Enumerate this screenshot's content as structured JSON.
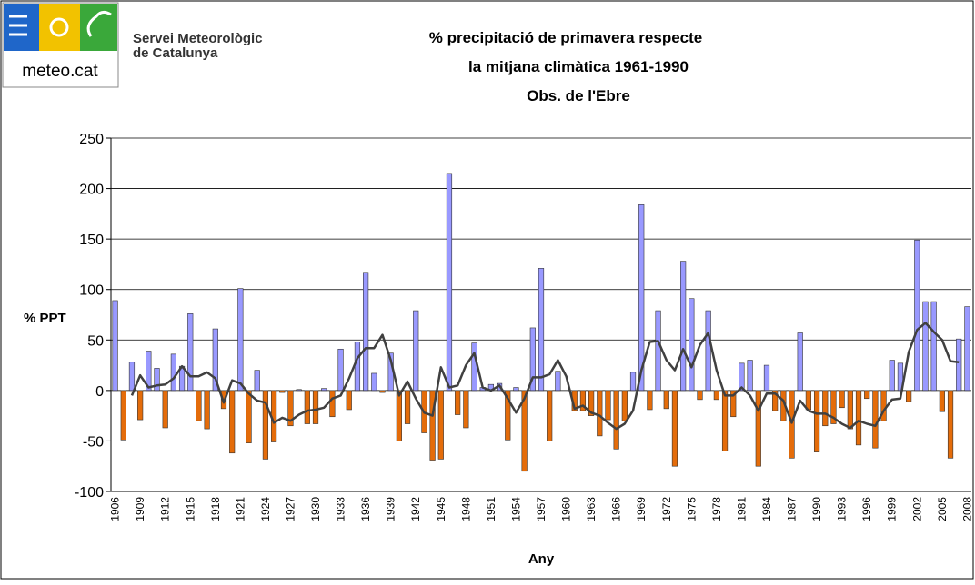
{
  "header": {
    "logo_text": "meteo.cat",
    "org_line1": "Servei Meteorològic",
    "org_line2": "de Catalunya"
  },
  "chart_data": {
    "type": "bar",
    "title": [
      "% precipitació de primavera respecte",
      "la mitjana climàtica 1961-1990",
      "Obs. de l'Ebre"
    ],
    "y_label": "% PPT",
    "x_label": "Any",
    "ylim": [
      -100,
      250
    ],
    "yticks": [
      -100,
      -50,
      0,
      50,
      100,
      150,
      200,
      250
    ],
    "grid": true,
    "categories": [
      "1906",
      null,
      null,
      "1909",
      null,
      null,
      "1912",
      null,
      null,
      "1915",
      null,
      null,
      "1918",
      null,
      null,
      "1921",
      null,
      null,
      "1924",
      null,
      null,
      "1927",
      null,
      null,
      "1930",
      null,
      null,
      "1933",
      null,
      null,
      "1936",
      null,
      null,
      "1939",
      null,
      null,
      "1942",
      null,
      null,
      "1945",
      null,
      null,
      "1948",
      null,
      null,
      "1951",
      null,
      null,
      "1954",
      null,
      null,
      "1957",
      null,
      null,
      "1960",
      null,
      null,
      "1963",
      null,
      null,
      "1966",
      null,
      null,
      "1969",
      null,
      null,
      "1972",
      null,
      null,
      "1975",
      null,
      null,
      "1978",
      null,
      null,
      "1981",
      null,
      null,
      "1984",
      null,
      null,
      "1987",
      null,
      null,
      "1990",
      null,
      null,
      "1993",
      null,
      null,
      "1996",
      null,
      null,
      "1999",
      null,
      null,
      "2002",
      null,
      null,
      "2005",
      null,
      null,
      "2008"
    ],
    "positive_color": "#9999ff",
    "negative_color": "#e46c0a",
    "series": [
      {
        "type": "bar",
        "values": [
          89,
          -49,
          28,
          -29,
          39,
          22,
          -37,
          36,
          24,
          76,
          -30,
          -38,
          61,
          -18,
          -62,
          101,
          -52,
          20,
          -68,
          -51,
          -2,
          -35,
          1,
          -33,
          -33,
          2,
          -26,
          41,
          -19,
          48,
          117,
          17,
          -2,
          37,
          -50,
          -33,
          79,
          -42,
          -69,
          -68,
          215,
          -24,
          -37,
          47,
          3,
          6,
          7,
          -49,
          3,
          -80,
          62,
          121,
          -50,
          19,
          0,
          -20,
          -20,
          -25,
          -45,
          -29,
          -58,
          -30,
          18,
          184,
          -19,
          79,
          -18,
          -75,
          128,
          91,
          -9,
          79,
          -9,
          -60,
          -26,
          27,
          30,
          -75,
          25,
          -20,
          -30,
          -67,
          57,
          -19,
          -61,
          -35,
          -33,
          -17,
          -38,
          -54,
          -8,
          -57,
          -30,
          30,
          27,
          -11,
          149,
          88,
          88,
          -21,
          -67,
          51,
          83
        ]
      },
      {
        "type": "line",
        "color": "#404040",
        "values": [
          null,
          null,
          -5,
          15,
          3,
          5,
          6,
          12,
          24,
          14,
          14,
          18,
          12,
          -12,
          10,
          7,
          -3,
          -10,
          -12,
          -32,
          -27,
          -30,
          -24,
          -20,
          -19,
          -17,
          -8,
          -5,
          12,
          32,
          42,
          42,
          55,
          30,
          -5,
          9,
          -8,
          -22,
          -25,
          23,
          3,
          5,
          25,
          37,
          3,
          0,
          5,
          -8,
          -22,
          -8,
          13,
          13,
          16,
          30,
          14,
          -18,
          -15,
          -22,
          -25,
          -32,
          -38,
          -33,
          -20,
          20,
          48,
          49,
          30,
          20,
          41,
          23,
          45,
          57,
          20,
          -5,
          -5,
          3,
          -5,
          -20,
          -3,
          -3,
          -10,
          -32,
          -10,
          -20,
          -23,
          -23,
          -27,
          -33,
          -37,
          -30,
          -33,
          -35,
          -20,
          -9,
          -8,
          38,
          60,
          67,
          58,
          50,
          29,
          28,
          null
        ]
      }
    ]
  }
}
